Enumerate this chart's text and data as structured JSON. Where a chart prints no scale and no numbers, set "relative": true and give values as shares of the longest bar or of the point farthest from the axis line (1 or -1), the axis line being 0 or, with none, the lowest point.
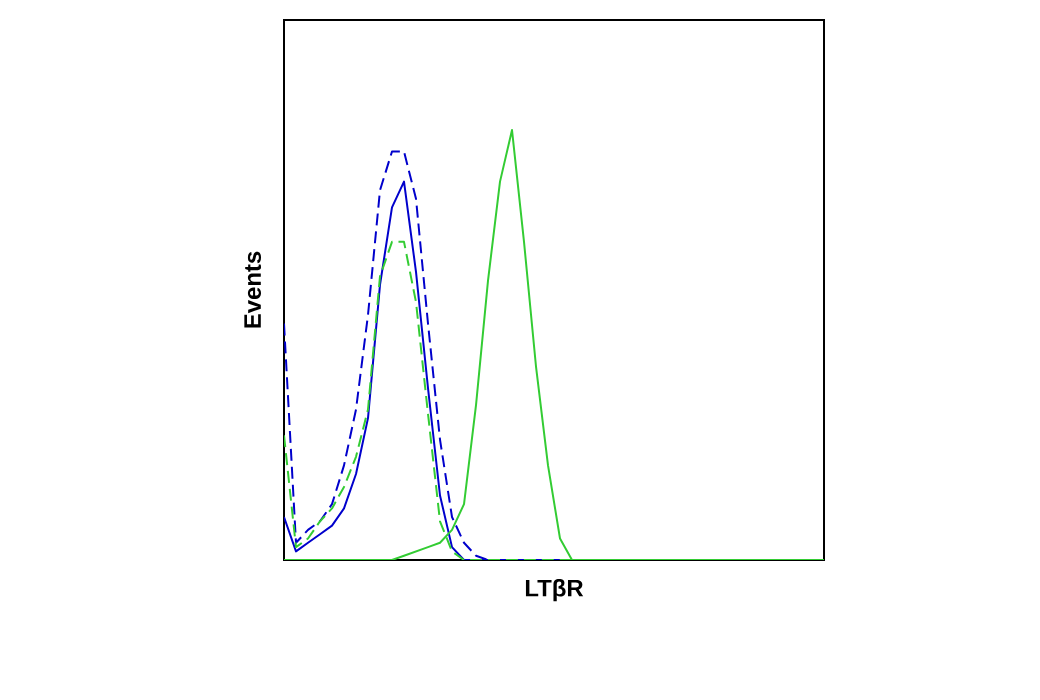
{
  "chart_data": {
    "type": "line",
    "relative": true,
    "xlabel": "LTβR",
    "ylabel": "Events",
    "categories": [
      null,
      null,
      null,
      null,
      null,
      null,
      null,
      null,
      null,
      null,
      null,
      null,
      null,
      null,
      null,
      null,
      null,
      null,
      null,
      null,
      null,
      null,
      null,
      null,
      null,
      null,
      null,
      null,
      null,
      null,
      null,
      null,
      null,
      null,
      null,
      null,
      null,
      null,
      null,
      null,
      null,
      null,
      null,
      null,
      null,
      null
    ],
    "series": [
      {
        "color": "#0000cc",
        "line_style": "solid",
        "values": [
          0.1,
          0.02,
          0.04,
          0.06,
          0.08,
          0.12,
          0.2,
          0.33,
          0.64,
          0.82,
          0.88,
          0.67,
          0.4,
          0.15,
          0.03,
          0,
          0,
          0,
          0,
          0,
          0,
          0,
          0,
          0,
          0,
          null,
          null,
          null,
          null,
          null,
          null,
          null,
          null,
          null,
          null,
          null,
          null,
          null,
          null,
          null,
          null,
          null,
          null,
          null,
          null,
          null
        ]
      },
      {
        "color": "#0000cc",
        "line_style": "dashed",
        "values": [
          0.55,
          0.04,
          0.07,
          0.09,
          0.13,
          0.22,
          0.35,
          0.57,
          0.86,
          0.95,
          0.95,
          0.84,
          0.55,
          0.28,
          0.1,
          0.04,
          0.01,
          0,
          0,
          0,
          0,
          0,
          0,
          0,
          0,
          0,
          null,
          null,
          null,
          null,
          null,
          null,
          null,
          null,
          null,
          null,
          null,
          null,
          null,
          null,
          null,
          null,
          null,
          null,
          null,
          null
        ]
      },
      {
        "color": "#33cc33",
        "line_style": "dashed",
        "values": [
          0.29,
          0.03,
          0.05,
          0.09,
          0.12,
          0.17,
          0.24,
          0.35,
          0.66,
          0.74,
          0.74,
          0.6,
          0.34,
          0.09,
          0.02,
          0,
          0,
          0,
          0,
          0,
          0,
          0,
          0,
          0,
          0,
          0,
          0,
          0,
          0,
          0,
          0,
          0,
          0,
          0,
          0,
          0,
          0,
          0,
          0,
          0,
          0,
          0,
          0,
          0,
          0,
          0
        ]
      },
      {
        "color": "#33cc33",
        "line_style": "solid",
        "values": [
          0,
          0,
          0,
          0,
          0,
          0,
          0,
          0,
          0,
          0,
          0.01,
          0.02,
          0.03,
          0.04,
          0.07,
          0.13,
          0.36,
          0.65,
          0.88,
          1.0,
          0.74,
          0.45,
          0.22,
          0.05,
          0,
          0,
          0,
          0,
          0,
          0,
          0,
          0,
          0,
          0,
          0,
          0,
          0,
          0,
          0,
          0,
          0,
          0,
          0,
          0,
          0,
          0
        ]
      }
    ]
  }
}
